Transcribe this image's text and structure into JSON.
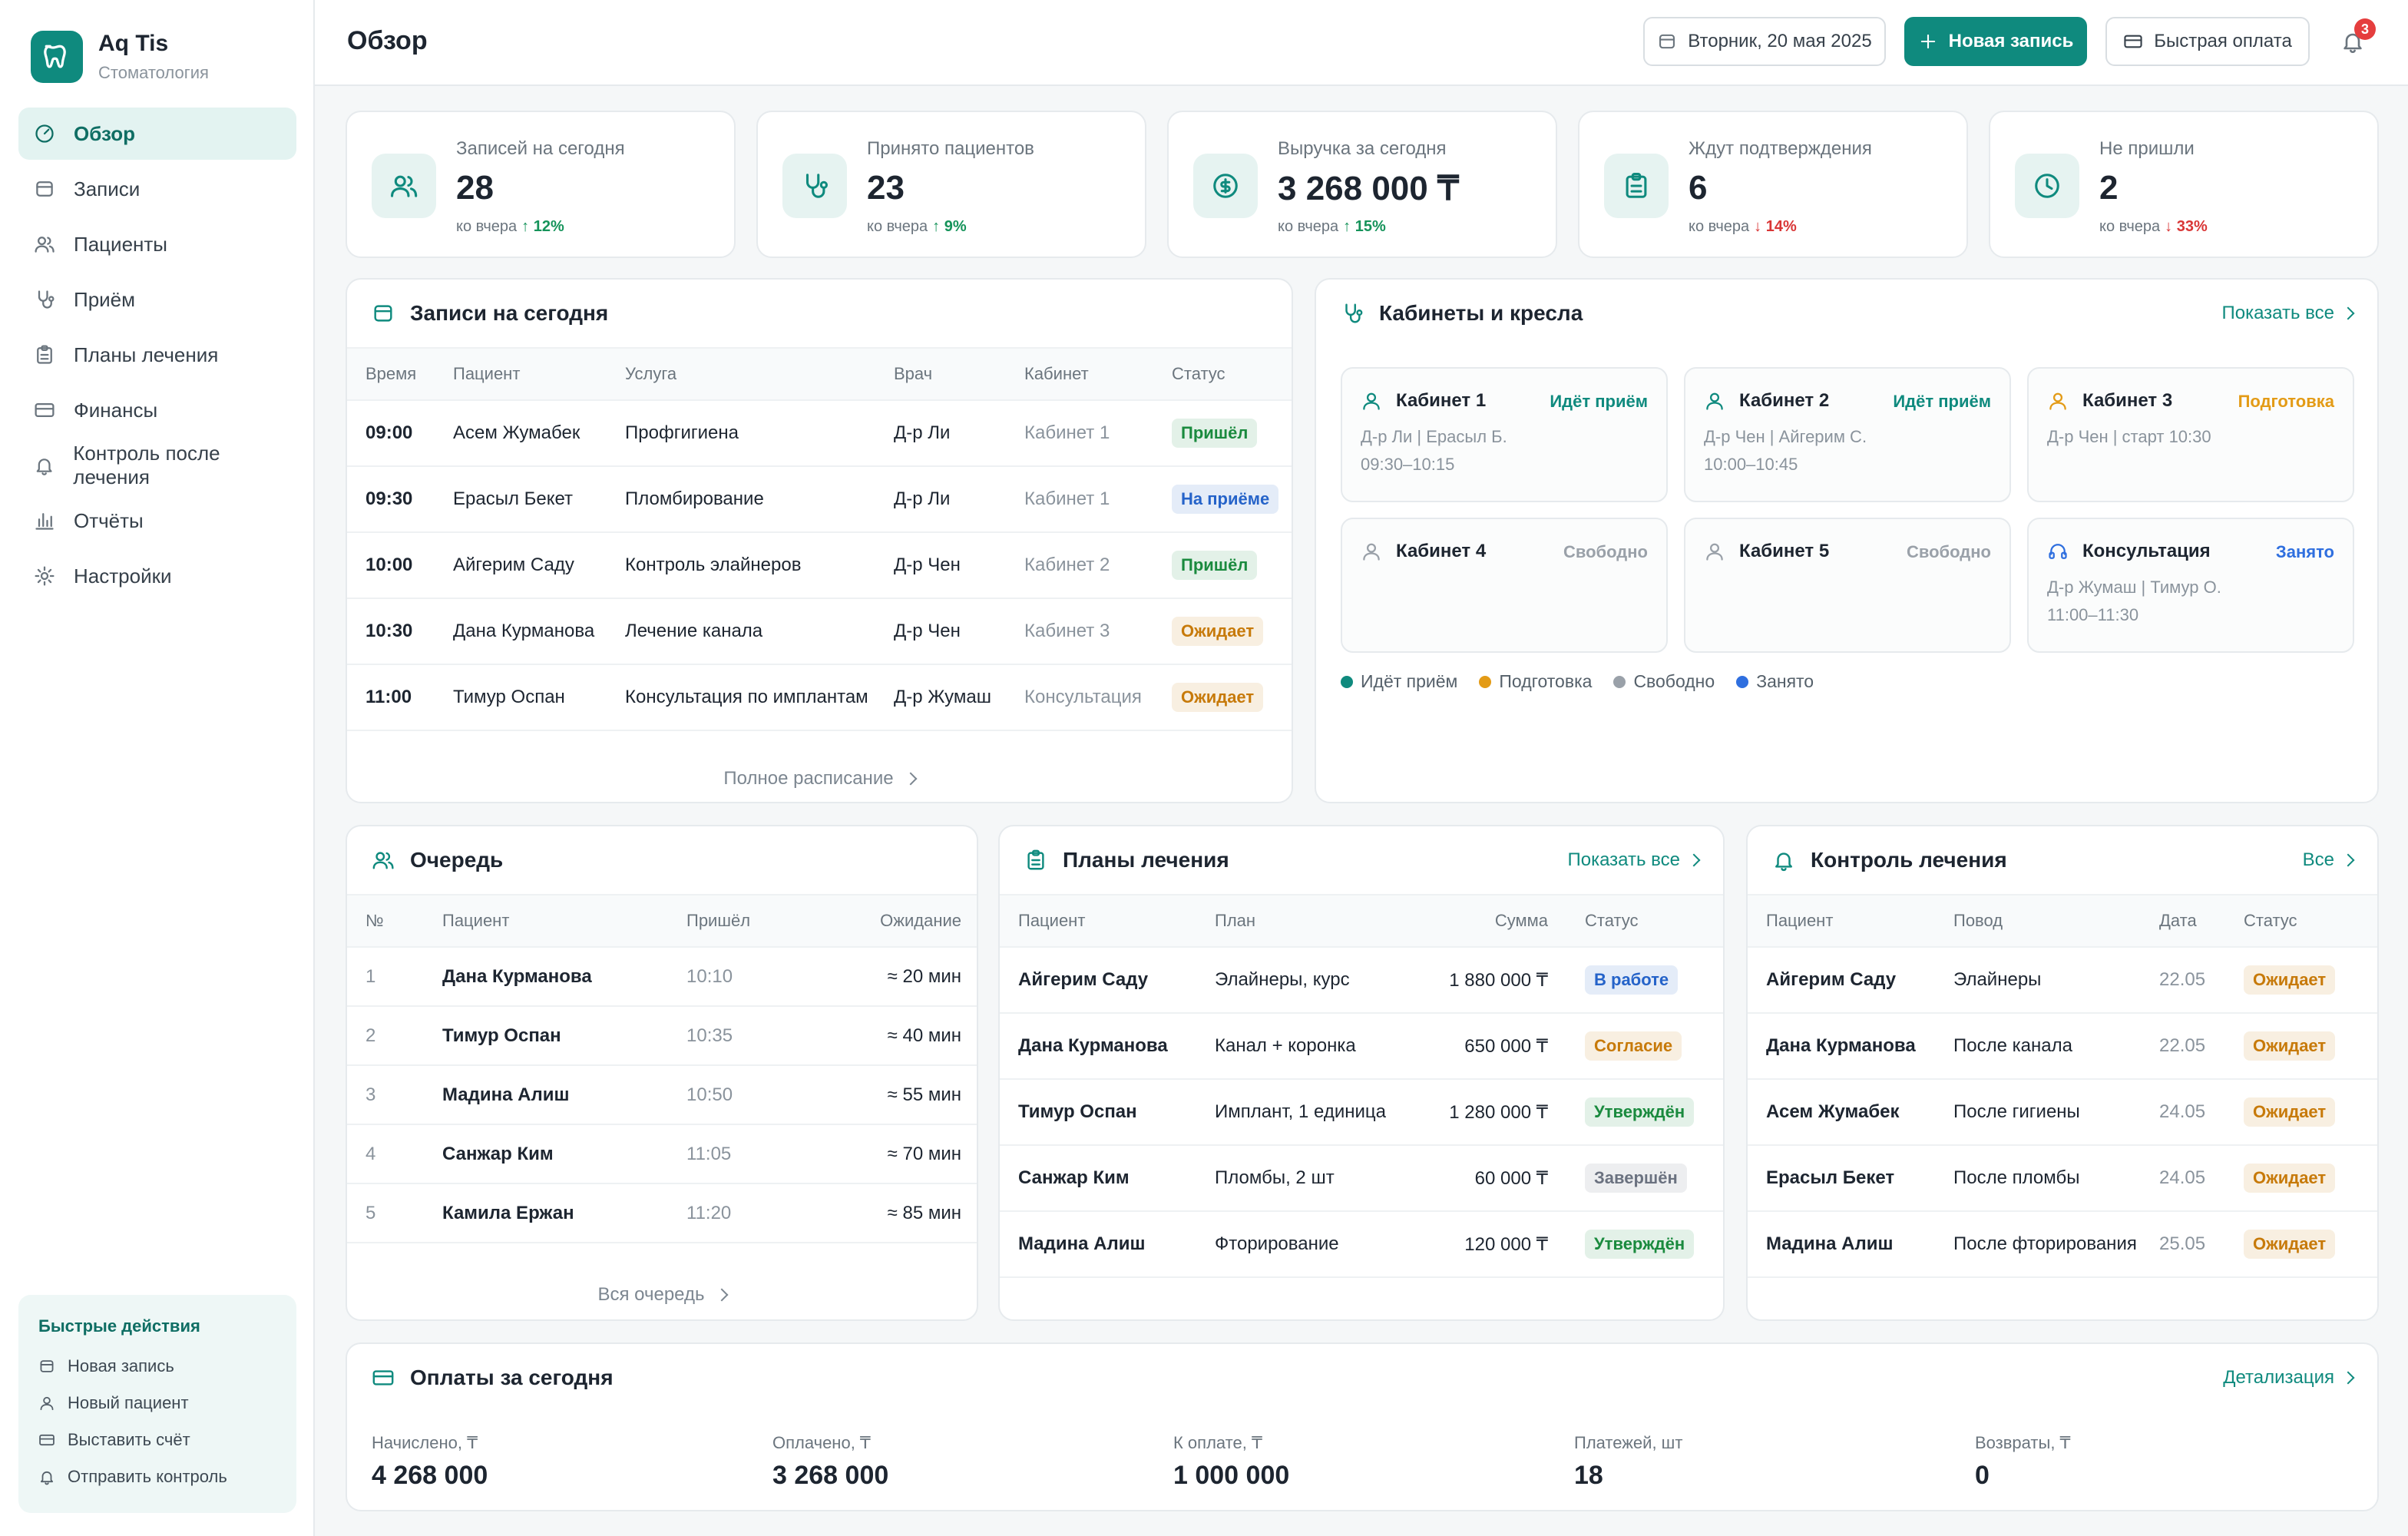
{
  "sidebar": {
    "brand": "Aq Tis",
    "subtitle": "Стоматология",
    "nav": [
      "Обзор",
      "Записи",
      "Пациенты",
      "Приём",
      "Планы лечения",
      "Финансы",
      "Контроль после лечения",
      "Отчёты",
      "Настройки"
    ],
    "quick_actions": {
      "title": "Быстрые действия",
      "items": [
        "Новая запись",
        "Новый пациент",
        "Выставить счёт",
        "Отправить контроль"
      ]
    }
  },
  "header": {
    "title": "Обзор",
    "date": "Вторник, 20 мая 2025",
    "new_button": "Новая запись",
    "pay_button": "Быстрая оплата",
    "notifications": "3"
  },
  "stats": [
    {
      "label": "Записей на сегодня",
      "value": "28",
      "compare": "ко вчера",
      "change": "↑ 12%",
      "change_color": "#15935a"
    },
    {
      "label": "Принято пациентов",
      "value": "23",
      "compare": "ко вчера",
      "change": "↑ 9%",
      "change_color": "#15935a"
    },
    {
      "label": "Выручка за сегодня",
      "value": "3 268 000 ₸",
      "compare": "ко вчера",
      "change": "↑ 15%",
      "change_color": "#15935a"
    },
    {
      "label": "Ждут подтверждения",
      "value": "6",
      "compare": "ко вчера",
      "change": "↓ 14%",
      "change_color": "#d93636"
    },
    {
      "label": "Не пришли",
      "value": "2",
      "compare": "ко вчера",
      "change": "↓ 33%",
      "change_color": "#d93636"
    }
  ],
  "appointments": {
    "title": "Записи на сегодня",
    "columns": [
      "Время",
      "Пациент",
      "Услуга",
      "Врач",
      "Кабинет",
      "Статус"
    ],
    "rows": [
      {
        "time": "09:00",
        "patient": "Асем Жумабек",
        "service": "Профгигиена",
        "doctor": "Д-р Ли",
        "cabinet": "Кабинет 1",
        "status": "Пришёл",
        "status_color": "#1a8a3e"
      },
      {
        "time": "09:30",
        "patient": "Ерасыл Бекет",
        "service": "Пломбирование",
        "doctor": "Д-р Ли",
        "cabinet": "Кабинет 1",
        "status": "На приёме",
        "status_color": "#2563c9"
      },
      {
        "time": "10:00",
        "patient": "Айгерим Саду",
        "service": "Контроль элайнеров",
        "doctor": "Д-р Чен",
        "cabinet": "Кабинет 2",
        "status": "Пришёл",
        "status_color": "#1a8a3e"
      },
      {
        "time": "10:30",
        "patient": "Дана Курманова",
        "service": "Лечение канала",
        "doctor": "Д-р Чен",
        "cabinet": "Кабинет 3",
        "status": "Ожидает",
        "status_color": "#c77a0a"
      },
      {
        "time": "11:00",
        "patient": "Тимур Оспан",
        "service": "Консультация по имплантам",
        "doctor": "Д-р Жумаш",
        "cabinet": "Консультация",
        "status": "Ожидает",
        "status_color": "#c77a0a"
      }
    ],
    "footer": "Полное расписание"
  },
  "cabinets": {
    "title": "Кабинеты и кресла",
    "link": "Показать все",
    "items": [
      {
        "name": "Кабинет 1",
        "status": "Идёт приём",
        "color": "#0f8a7e",
        "lines": [
          "Д-р Ли | Ерасыл Б.",
          "09:30–10:15"
        ]
      },
      {
        "name": "Кабинет 2",
        "status": "Идёт приём",
        "color": "#0f8a7e",
        "lines": [
          "Д-р Чен | Айгерим С.",
          "10:00–10:45"
        ]
      },
      {
        "name": "Кабинет 3",
        "status": "Подготовка",
        "color": "#e39b16",
        "lines": [
          "Д-р Чен | старт 10:30"
        ]
      },
      {
        "name": "Кабинет 4",
        "status": "Свободно",
        "color": "#9aa1a9",
        "lines": []
      },
      {
        "name": "Кабинет 5",
        "status": "Свободно",
        "color": "#9aa1a9",
        "lines": []
      },
      {
        "name": "Консультация",
        "status": "Занято",
        "color": "#2f6fdf",
        "lines": [
          "Д-р Жумаш | Тимур О.",
          "11:00–11:30"
        ]
      }
    ],
    "legend": [
      {
        "label": "Идёт приём",
        "color": "#0f8a7e"
      },
      {
        "label": "Подготовка",
        "color": "#e39b16"
      },
      {
        "label": "Свободно",
        "color": "#9aa1a9"
      },
      {
        "label": "Занято",
        "color": "#2f6fdf"
      }
    ]
  },
  "queue": {
    "title": "Очередь",
    "columns": [
      "№",
      "Пациент",
      "Пришёл",
      "Ожидание"
    ],
    "rows": [
      {
        "num": "1",
        "patient": "Дана Курманова",
        "arrived": "10:10",
        "wait": "≈ 20 мин"
      },
      {
        "num": "2",
        "patient": "Тимур Оспан",
        "arrived": "10:35",
        "wait": "≈ 40 мин"
      },
      {
        "num": "3",
        "patient": "Мадина Алиш",
        "arrived": "10:50",
        "wait": "≈ 55 мин"
      },
      {
        "num": "4",
        "patient": "Санжар Ким",
        "arrived": "11:05",
        "wait": "≈ 70 мин"
      },
      {
        "num": "5",
        "patient": "Камила Ержан",
        "arrived": "11:20",
        "wait": "≈ 85 мин"
      }
    ],
    "footer": "Вся очередь"
  },
  "plans": {
    "title": "Планы лечения",
    "link": "Показать все",
    "columns": [
      "Пациент",
      "План",
      "Сумма",
      "Статус"
    ],
    "rows": [
      {
        "patient": "Айгерим Саду",
        "plan": "Элайнеры, курс",
        "sum": "1 880 000 ₸",
        "status": "В работе",
        "status_color": "#2563c9"
      },
      {
        "patient": "Дана Курманова",
        "plan": "Канал + коронка",
        "sum": "650 000 ₸",
        "status": "Согласие",
        "status_color": "#c77a0a"
      },
      {
        "patient": "Тимур Оспан",
        "plan": "Имплант, 1 единица",
        "sum": "1 280 000 ₸",
        "status": "Утверждён",
        "status_color": "#1a8a3e"
      },
      {
        "patient": "Санжар Ким",
        "plan": "Пломбы, 2 шт",
        "sum": "60 000 ₸",
        "status": "Завершён",
        "status_color": "#6b7280"
      },
      {
        "patient": "Мадина Алиш",
        "plan": "Фторирование",
        "sum": "120 000 ₸",
        "status": "Утверждён",
        "status_color": "#1a8a3e"
      }
    ]
  },
  "control": {
    "title": "Контроль лечения",
    "link": "Все",
    "columns": [
      "Пациент",
      "Повод",
      "Дата",
      "Статус"
    ],
    "rows": [
      {
        "patient": "Айгерим Саду",
        "reason": "Элайнеры",
        "date": "22.05",
        "status": "Ожидает",
        "status_color": "#c77a0a"
      },
      {
        "patient": "Дана Курманова",
        "reason": "После канала",
        "date": "22.05",
        "status": "Ожидает",
        "status_color": "#c77a0a"
      },
      {
        "patient": "Асем Жумабек",
        "reason": "После гигиены",
        "date": "24.05",
        "status": "Ожидает",
        "status_color": "#c77a0a"
      },
      {
        "patient": "Ерасыл Бекет",
        "reason": "После пломбы",
        "date": "24.05",
        "status": "Ожидает",
        "status_color": "#c77a0a"
      },
      {
        "patient": "Мадина Алиш",
        "reason": "После фторирования",
        "date": "25.05",
        "status": "Ожидает",
        "status_color": "#c77a0a"
      }
    ]
  },
  "payments": {
    "title": "Оплаты за сегодня",
    "link": "Детализация",
    "items": [
      {
        "label": "Начислено, ₸",
        "value": "4 268 000"
      },
      {
        "label": "Оплачено, ₸",
        "value": "3 268 000"
      },
      {
        "label": "К оплате, ₸",
        "value": "1 000 000"
      },
      {
        "label": "Платежей, шт",
        "value": "18"
      },
      {
        "label": "Возвраты, ₸",
        "value": "0"
      }
    ]
  }
}
